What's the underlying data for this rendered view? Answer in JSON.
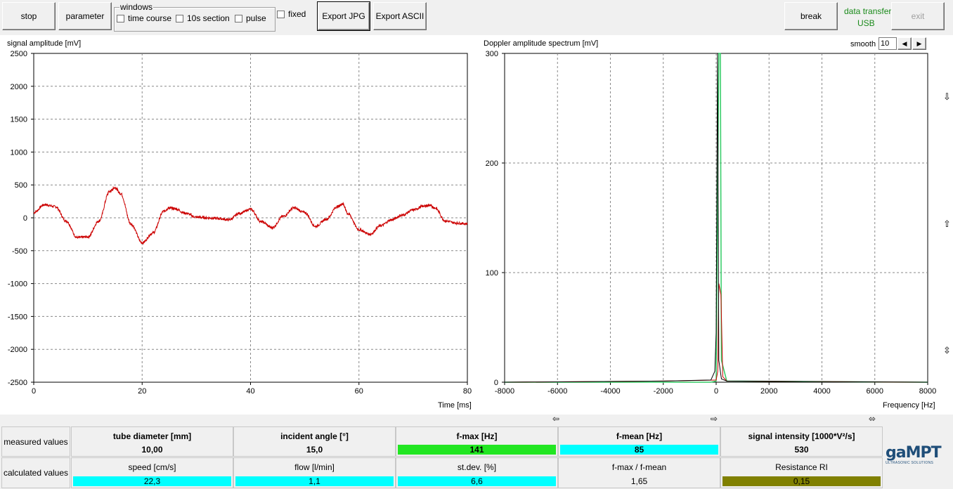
{
  "toolbar": {
    "stop": "stop",
    "parameter": "parameter",
    "windows_legend": "windows",
    "time_course": "time course",
    "section_10s": "10s section",
    "pulse": "pulse",
    "fixed": "fixed",
    "export_jpg": "Export JPG",
    "export_ascii": "Export ASCII",
    "break": "break",
    "data_transfer_label": "data transfer:",
    "data_transfer_value": "USB",
    "exit": "exit"
  },
  "colors": {
    "signal": "#cc0000",
    "spectrum_black": "#000000",
    "spectrum_green": "#33cc66",
    "fmax": "#22e622",
    "cyan": "#00ffff",
    "olive": "#808000"
  },
  "signal_chart": {
    "title": "signal amplitude [mV]",
    "xlabel": "Time [ms]",
    "y_ticks": [
      "2500",
      "2000",
      "1500",
      "1000",
      "500",
      "0",
      "-500",
      "-1000",
      "-1500",
      "-2000",
      "-2500"
    ],
    "x_ticks": [
      "0",
      "20",
      "40",
      "60",
      "80"
    ]
  },
  "spectrum_chart": {
    "title": "Doppler amplitude spectrum [mV]",
    "xlabel": "Frequency [Hz]",
    "smooth_label": "smooth",
    "smooth_value": "10",
    "y_ticks": [
      "300",
      "200",
      "100",
      "0"
    ],
    "x_ticks": [
      "-8000",
      "-6000",
      "-4000",
      "-2000",
      "0",
      "2000",
      "4000",
      "6000",
      "8000"
    ]
  },
  "chart_data": [
    {
      "type": "line",
      "title": "signal amplitude [mV]",
      "xlabel": "Time [ms]",
      "ylabel": "",
      "xlim": [
        0,
        80
      ],
      "ylim": [
        -2500,
        2500
      ],
      "grid": true,
      "series": [
        {
          "x": [
            0,
            2,
            4,
            6,
            8,
            10,
            12,
            14,
            15,
            16,
            18,
            20,
            22,
            24,
            25,
            26,
            28,
            30,
            32,
            34,
            36,
            38,
            40,
            42,
            44,
            46,
            48,
            50,
            52,
            54,
            56,
            57,
            58,
            60,
            62,
            64,
            66,
            68,
            70,
            72,
            73,
            74,
            76,
            78,
            80
          ],
          "values": [
            80,
            200,
            170,
            -50,
            -300,
            -290,
            -50,
            400,
            460,
            370,
            -100,
            -380,
            -230,
            100,
            150,
            140,
            70,
            10,
            0,
            -10,
            -30,
            70,
            130,
            -60,
            -150,
            20,
            150,
            80,
            -130,
            -20,
            170,
            210,
            60,
            -180,
            -250,
            -120,
            -30,
            40,
            120,
            180,
            190,
            150,
            -50,
            -80,
            -90
          ]
        }
      ]
    },
    {
      "type": "line",
      "title": "Doppler amplitude spectrum [mV]",
      "xlabel": "Frequency [Hz]",
      "ylabel": "",
      "xlim": [
        -8000,
        8000
      ],
      "ylim": [
        0,
        300
      ],
      "grid": true,
      "series": [
        {
          "x": [
            -8000,
            -2000,
            -200,
            -50,
            0,
            50,
            100,
            200,
            400,
            8000
          ],
          "values": [
            0,
            1,
            2,
            10,
            45,
            300,
            20,
            3,
            1,
            0
          ]
        },
        {
          "x": [
            -8000,
            -2000,
            0,
            60,
            100,
            141,
            180,
            250,
            400,
            8000
          ],
          "values": [
            0,
            1,
            2,
            10,
            90,
            85,
            80,
            5,
            1,
            0
          ]
        },
        {
          "x": [
            -8000,
            -200,
            0,
            100,
            130,
            160,
            200,
            400,
            8000
          ],
          "values": [
            0,
            0,
            1,
            300,
            300,
            300,
            20,
            1,
            0
          ]
        }
      ]
    }
  ],
  "arrows": {
    "down": "⇩",
    "up": "⇧",
    "updown": "⇳",
    "left": "⇦",
    "right": "⇨",
    "leftright": "⬄"
  },
  "measured": {
    "row_label": "measured values",
    "tube_diameter_label": "tube diameter [mm]",
    "tube_diameter_value": "10,00",
    "incident_angle_label": "incident angle [°]",
    "incident_angle_value": "15,0",
    "fmax_label": "f-max [Hz]",
    "fmax_value": "141",
    "fmean_label": "f-mean [Hz]",
    "fmean_value": "85",
    "signal_intensity_label": "signal intensity [1000*V²/s]",
    "signal_intensity_value": "530"
  },
  "calculated": {
    "row_label": "calculated values",
    "speed_label": "speed  [cm/s]",
    "speed_value": "22,3",
    "flow_label": "flow [l/min]",
    "flow_value": "1,1",
    "stdev_label": "st.dev. [%]",
    "stdev_value": "6,6",
    "ratio_label": "f-max / f-mean",
    "ratio_value": "1,65",
    "ri_label": "Resistance RI",
    "ri_value": "0,15"
  },
  "logo": {
    "brand": "gaMPT",
    "tagline": "ULTRASONIC SOLUTIONS"
  }
}
